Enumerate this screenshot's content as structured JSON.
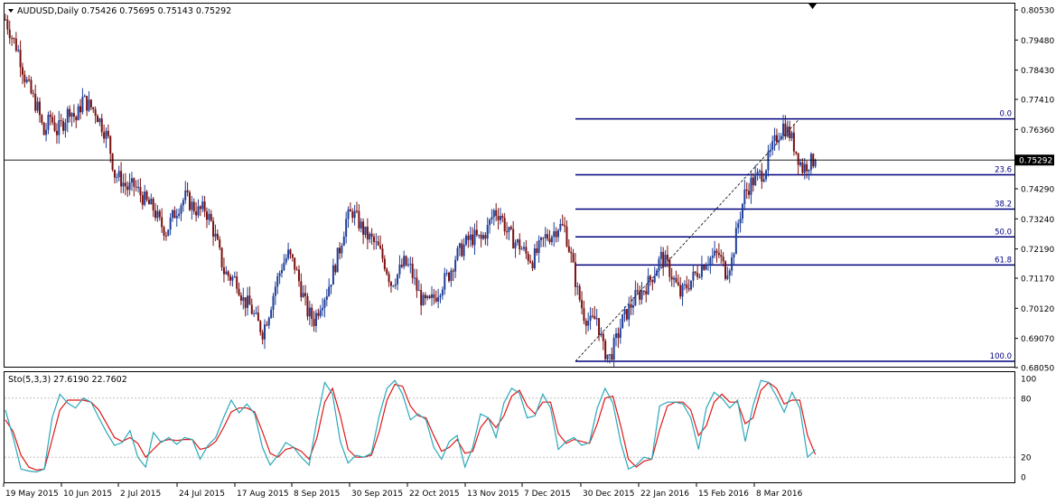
{
  "header": {
    "symbol_text": "AUDUSD,Daily",
    "ohlc_text": "0.75426 0.75695 0.75143 0.75292"
  },
  "indicator": {
    "label_text": "Sto(5,3,3) 27.6190 22.7602"
  },
  "colors": {
    "background": "#ffffff",
    "frame": "#000000",
    "candle_up": "#1f3f9a",
    "candle_down": "#7a1010",
    "fib_line": "#00007f",
    "stoch_main": "#2aa8b8",
    "stoch_signal": "#e01818",
    "level_line": "#bfbfbf"
  },
  "chart_data": [
    {
      "type": "candlestick",
      "symbol": "AUDUSD",
      "timeframe": "Daily",
      "last_price": 0.75292,
      "price_axis_ticks": [
        "0.80530",
        "0.79480",
        "0.78430",
        "0.77410",
        "0.76360",
        "0.75292",
        "0.74290",
        "0.73240",
        "0.72190",
        "0.71170",
        "0.70120",
        "0.69070",
        "0.68050"
      ],
      "price_tick_values": [
        0.8053,
        0.7948,
        0.7843,
        0.7741,
        0.7636,
        0.7429,
        0.7324,
        0.7219,
        0.7117,
        0.7012,
        0.6907,
        0.6805
      ],
      "x_axis_labels": [
        "19 May 2015",
        "10 Jun 2015",
        "2 Jul 2015",
        "24 Jul 2015",
        "17 Aug 2015",
        "8 Sep 2015",
        "30 Sep 2015",
        "22 Oct 2015",
        "13 Nov 2015",
        "7 Dec 2015",
        "30 Dec 2015",
        "22 Jan 2016",
        "15 Feb 2016",
        "8 Mar 2016"
      ],
      "ylim": [
        0.6805,
        0.8053
      ],
      "fibonacci": {
        "levels": [
          {
            "label": "0.0",
            "price": 0.7673
          },
          {
            "label": "23.6",
            "price": 0.7478
          },
          {
            "label": "38.2",
            "price": 0.7358
          },
          {
            "label": "50.0",
            "price": 0.7261
          },
          {
            "label": "61.8",
            "price": 0.7163
          },
          {
            "label": "100.0",
            "price": 0.6827
          }
        ]
      },
      "price_path": [
        [
          0,
          0.802
        ],
        [
          3,
          0.796
        ],
        [
          6,
          0.791
        ],
        [
          9,
          0.782
        ],
        [
          12,
          0.776
        ],
        [
          15,
          0.771
        ],
        [
          18,
          0.762
        ],
        [
          21,
          0.768
        ],
        [
          24,
          0.763
        ],
        [
          27,
          0.766
        ],
        [
          30,
          0.771
        ],
        [
          33,
          0.767
        ],
        [
          36,
          0.774
        ],
        [
          39,
          0.772
        ],
        [
          42,
          0.77
        ],
        [
          45,
          0.765
        ],
        [
          48,
          0.76
        ],
        [
          51,
          0.748
        ],
        [
          54,
          0.746
        ],
        [
          57,
          0.743
        ],
        [
          60,
          0.744
        ],
        [
          63,
          0.741
        ],
        [
          66,
          0.738
        ],
        [
          69,
          0.736
        ],
        [
          72,
          0.731
        ],
        [
          75,
          0.728
        ],
        [
          78,
          0.733
        ],
        [
          81,
          0.737
        ],
        [
          84,
          0.74
        ],
        [
          87,
          0.737
        ],
        [
          90,
          0.735
        ],
        [
          93,
          0.736
        ],
        [
          96,
          0.731
        ],
        [
          99,
          0.723
        ],
        [
          102,
          0.714
        ],
        [
          105,
          0.712
        ],
        [
          108,
          0.711
        ],
        [
          111,
          0.704
        ],
        [
          114,
          0.702
        ],
        [
          117,
          0.697
        ],
        [
          120,
          0.693
        ],
        [
          123,
          0.7
        ],
        [
          126,
          0.709
        ],
        [
          129,
          0.716
        ],
        [
          132,
          0.72
        ],
        [
          135,
          0.716
        ],
        [
          138,
          0.708
        ],
        [
          141,
          0.7
        ],
        [
          144,
          0.697
        ],
        [
          147,
          0.703
        ],
        [
          150,
          0.707
        ],
        [
          153,
          0.714
        ],
        [
          156,
          0.722
        ],
        [
          159,
          0.732
        ],
        [
          162,
          0.735
        ],
        [
          165,
          0.731
        ],
        [
          168,
          0.727
        ],
        [
          171,
          0.725
        ],
        [
          174,
          0.722
        ],
        [
          177,
          0.717
        ],
        [
          180,
          0.71
        ],
        [
          183,
          0.713
        ],
        [
          186,
          0.717
        ],
        [
          189,
          0.715
        ],
        [
          192,
          0.708
        ],
        [
          195,
          0.703
        ],
        [
          198,
          0.703
        ],
        [
          201,
          0.706
        ],
        [
          204,
          0.71
        ],
        [
          207,
          0.713
        ],
        [
          210,
          0.719
        ],
        [
          213,
          0.722
        ],
        [
          216,
          0.725
        ],
        [
          219,
          0.726
        ],
        [
          222,
          0.725
        ],
        [
          225,
          0.729
        ],
        [
          228,
          0.735
        ],
        [
          231,
          0.734
        ],
        [
          234,
          0.728
        ],
        [
          237,
          0.725
        ],
        [
          240,
          0.723
        ],
        [
          243,
          0.72
        ],
        [
          246,
          0.718
        ],
        [
          249,
          0.722
        ],
        [
          252,
          0.726
        ],
        [
          255,
          0.727
        ],
        [
          258,
          0.73
        ],
        [
          261,
          0.729
        ],
        [
          264,
          0.719
        ],
        [
          267,
          0.707
        ],
        [
          270,
          0.699
        ],
        [
          273,
          0.696
        ],
        [
          276,
          0.698
        ],
        [
          279,
          0.687
        ],
        [
          282,
          0.684
        ],
        [
          285,
          0.69
        ],
        [
          288,
          0.697
        ],
        [
          291,
          0.701
        ],
        [
          294,
          0.705
        ],
        [
          297,
          0.707
        ],
        [
          300,
          0.71
        ],
        [
          303,
          0.714
        ],
        [
          306,
          0.719
        ],
        [
          309,
          0.716
        ],
        [
          312,
          0.711
        ],
        [
          315,
          0.706
        ],
        [
          318,
          0.709
        ],
        [
          321,
          0.712
        ],
        [
          324,
          0.715
        ],
        [
          327,
          0.718
        ],
        [
          330,
          0.719
        ],
        [
          333,
          0.72
        ],
        [
          336,
          0.714
        ],
        [
          339,
          0.718
        ],
        [
          342,
          0.731
        ],
        [
          345,
          0.741
        ],
        [
          348,
          0.745
        ],
        [
          351,
          0.747
        ],
        [
          354,
          0.749
        ],
        [
          357,
          0.755
        ],
        [
          360,
          0.761
        ],
        [
          363,
          0.765
        ],
        [
          366,
          0.762
        ],
        [
          369,
          0.756
        ],
        [
          372,
          0.75
        ],
        [
          375,
          0.752
        ],
        [
          378,
          0.7529
        ]
      ]
    },
    {
      "type": "line",
      "name": "Sto(5,3,3)",
      "main_value": 27.619,
      "signal_value": 22.7602,
      "ylim": [
        0,
        100
      ],
      "y_ticks": [
        "100",
        "80",
        "20",
        "0"
      ],
      "levels": [
        80,
        20
      ],
      "main_path": [
        [
          0,
          68
        ],
        [
          4,
          40
        ],
        [
          8,
          8
        ],
        [
          12,
          6
        ],
        [
          16,
          5
        ],
        [
          20,
          8
        ],
        [
          24,
          60
        ],
        [
          28,
          84
        ],
        [
          32,
          75
        ],
        [
          36,
          70
        ],
        [
          40,
          80
        ],
        [
          44,
          76
        ],
        [
          48,
          60
        ],
        [
          52,
          45
        ],
        [
          56,
          32
        ],
        [
          60,
          35
        ],
        [
          64,
          47
        ],
        [
          68,
          20
        ],
        [
          72,
          10
        ],
        [
          76,
          45
        ],
        [
          80,
          35
        ],
        [
          84,
          40
        ],
        [
          88,
          33
        ],
        [
          92,
          40
        ],
        [
          96,
          38
        ],
        [
          100,
          18
        ],
        [
          104,
          32
        ],
        [
          108,
          40
        ],
        [
          112,
          60
        ],
        [
          116,
          78
        ],
        [
          120,
          65
        ],
        [
          124,
          74
        ],
        [
          128,
          64
        ],
        [
          132,
          30
        ],
        [
          136,
          12
        ],
        [
          140,
          22
        ],
        [
          144,
          35
        ],
        [
          148,
          30
        ],
        [
          152,
          20
        ],
        [
          156,
          12
        ],
        [
          160,
          58
        ],
        [
          164,
          96
        ],
        [
          168,
          84
        ],
        [
          172,
          36
        ],
        [
          176,
          14
        ],
        [
          180,
          22
        ],
        [
          184,
          20
        ],
        [
          188,
          24
        ],
        [
          192,
          62
        ],
        [
          196,
          90
        ],
        [
          200,
          98
        ],
        [
          204,
          84
        ],
        [
          208,
          58
        ],
        [
          212,
          64
        ],
        [
          216,
          58
        ],
        [
          220,
          30
        ],
        [
          224,
          18
        ],
        [
          228,
          36
        ],
        [
          232,
          42
        ],
        [
          236,
          10
        ],
        [
          240,
          30
        ],
        [
          244,
          64
        ],
        [
          248,
          60
        ],
        [
          252,
          40
        ],
        [
          256,
          75
        ],
        [
          260,
          90
        ],
        [
          264,
          85
        ],
        [
          268,
          60
        ],
        [
          272,
          62
        ],
        [
          276,
          84
        ],
        [
          280,
          70
        ],
        [
          284,
          28
        ],
        [
          288,
          36
        ],
        [
          292,
          40
        ],
        [
          296,
          32
        ],
        [
          300,
          35
        ],
        [
          304,
          70
        ],
        [
          308,
          90
        ],
        [
          312,
          75
        ],
        [
          316,
          35
        ],
        [
          320,
          8
        ],
        [
          324,
          12
        ],
        [
          328,
          20
        ],
        [
          332,
          18
        ],
        [
          336,
          72
        ],
        [
          340,
          76
        ],
        [
          344,
          76
        ],
        [
          348,
          74
        ],
        [
          352,
          60
        ],
        [
          356,
          28
        ],
        [
          360,
          70
        ],
        [
          364,
          86
        ],
        [
          368,
          80
        ],
        [
          372,
          70
        ],
        [
          376,
          78
        ],
        [
          380,
          36
        ],
        [
          384,
          72
        ],
        [
          388,
          98
        ],
        [
          392,
          96
        ],
        [
          396,
          82
        ],
        [
          400,
          66
        ],
        [
          404,
          86
        ],
        [
          408,
          70
        ],
        [
          412,
          20
        ],
        [
          416,
          27.6
        ]
      ],
      "signal_path": [
        [
          0,
          58
        ],
        [
          4,
          46
        ],
        [
          8,
          22
        ],
        [
          12,
          10
        ],
        [
          16,
          7
        ],
        [
          20,
          8
        ],
        [
          24,
          38
        ],
        [
          28,
          68
        ],
        [
          32,
          78
        ],
        [
          36,
          78
        ],
        [
          40,
          78
        ],
        [
          44,
          76
        ],
        [
          48,
          68
        ],
        [
          52,
          54
        ],
        [
          56,
          40
        ],
        [
          60,
          36
        ],
        [
          64,
          40
        ],
        [
          68,
          34
        ],
        [
          72,
          20
        ],
        [
          76,
          28
        ],
        [
          80,
          36
        ],
        [
          84,
          38
        ],
        [
          88,
          37
        ],
        [
          92,
          38
        ],
        [
          96,
          38
        ],
        [
          100,
          28
        ],
        [
          104,
          30
        ],
        [
          108,
          36
        ],
        [
          112,
          50
        ],
        [
          116,
          66
        ],
        [
          120,
          70
        ],
        [
          124,
          70
        ],
        [
          128,
          66
        ],
        [
          132,
          46
        ],
        [
          136,
          24
        ],
        [
          140,
          20
        ],
        [
          144,
          28
        ],
        [
          148,
          30
        ],
        [
          152,
          26
        ],
        [
          156,
          18
        ],
        [
          160,
          40
        ],
        [
          164,
          76
        ],
        [
          168,
          90
        ],
        [
          172,
          62
        ],
        [
          176,
          28
        ],
        [
          180,
          20
        ],
        [
          184,
          20
        ],
        [
          188,
          22
        ],
        [
          192,
          46
        ],
        [
          196,
          78
        ],
        [
          200,
          94
        ],
        [
          204,
          92
        ],
        [
          208,
          72
        ],
        [
          212,
          62
        ],
        [
          216,
          60
        ],
        [
          220,
          42
        ],
        [
          224,
          26
        ],
        [
          228,
          30
        ],
        [
          232,
          38
        ],
        [
          236,
          24
        ],
        [
          240,
          26
        ],
        [
          244,
          50
        ],
        [
          248,
          60
        ],
        [
          252,
          50
        ],
        [
          256,
          62
        ],
        [
          260,
          82
        ],
        [
          264,
          88
        ],
        [
          268,
          72
        ],
        [
          272,
          64
        ],
        [
          276,
          76
        ],
        [
          280,
          76
        ],
        [
          284,
          44
        ],
        [
          288,
          34
        ],
        [
          292,
          38
        ],
        [
          296,
          36
        ],
        [
          300,
          34
        ],
        [
          304,
          54
        ],
        [
          308,
          80
        ],
        [
          312,
          82
        ],
        [
          316,
          52
        ],
        [
          320,
          18
        ],
        [
          324,
          10
        ],
        [
          328,
          16
        ],
        [
          332,
          18
        ],
        [
          336,
          48
        ],
        [
          340,
          72
        ],
        [
          344,
          76
        ],
        [
          348,
          76
        ],
        [
          352,
          68
        ],
        [
          356,
          42
        ],
        [
          360,
          52
        ],
        [
          364,
          76
        ],
        [
          368,
          84
        ],
        [
          372,
          76
        ],
        [
          376,
          76
        ],
        [
          380,
          54
        ],
        [
          384,
          60
        ],
        [
          388,
          88
        ],
        [
          392,
          96
        ],
        [
          396,
          90
        ],
        [
          400,
          74
        ],
        [
          404,
          78
        ],
        [
          408,
          78
        ],
        [
          412,
          42
        ],
        [
          416,
          22.76
        ]
      ]
    }
  ]
}
